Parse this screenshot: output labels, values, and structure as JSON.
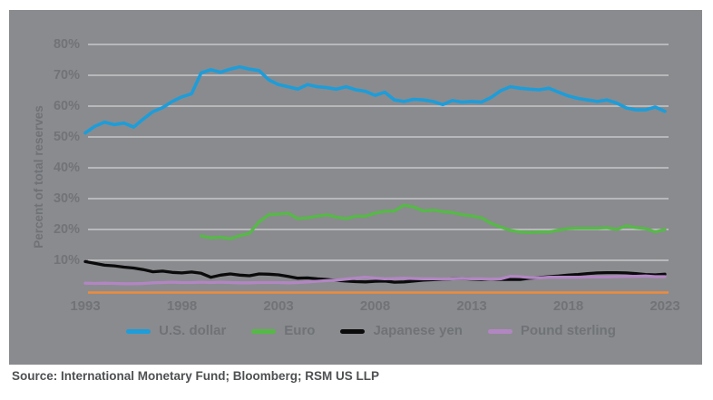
{
  "colors": {
    "panel_background": "#8a8b8e",
    "gridline": "#c6c7c9",
    "baseline_orange": "#ef8b3a",
    "tick_text": "#717377",
    "axis_title_text": "#6f7276",
    "legend_text": "#6f7276",
    "source_text": "#4e5052",
    "us_dollar": "#1d9dd9",
    "euro": "#56b947",
    "japanese_yen": "#0b0b0c",
    "pound_sterling": "#b286c3"
  },
  "source_line": "Source: International Monetary Fund; Bloomberg; RSM US LLP",
  "chart_data": {
    "type": "line",
    "title": "",
    "ylabel": "Percent of total reserves",
    "xlabel": "",
    "ylim": [
      0,
      85
    ],
    "xlim": [
      1992.6,
      2023.6
    ],
    "grid": "horizontal",
    "legend_position": "bottom",
    "baseline": {
      "value": 0,
      "color": "#ef8b3a"
    },
    "y_axis": {
      "tick_values": [
        10,
        20,
        30,
        40,
        50,
        60,
        70,
        80
      ],
      "tick_labels": [
        "10%",
        "20%",
        "30%",
        "40%",
        "50%",
        "60%",
        "70%",
        "80%"
      ]
    },
    "x_axis": {
      "tick_values": [
        1993,
        1998,
        2003,
        2008,
        2013,
        2018,
        2023
      ],
      "tick_labels": [
        "1993",
        "1998",
        "2003",
        "2008",
        "2013",
        "2018",
        "2023"
      ]
    },
    "series": [
      {
        "name": "U.S. dollar",
        "color": "#1d9dd9",
        "x_start": 1993,
        "x_step": 0.5,
        "values": [
          51.3,
          53.5,
          54.8,
          54.0,
          54.5,
          53.2,
          55.8,
          58.2,
          59.5,
          61.5,
          63.0,
          64.0,
          70.8,
          71.8,
          71.0,
          72.0,
          72.7,
          72.0,
          71.5,
          68.5,
          67.0,
          66.3,
          65.5,
          67.0,
          66.3,
          66.0,
          65.5,
          66.3,
          65.3,
          64.8,
          63.5,
          64.5,
          62.0,
          61.5,
          62.2,
          62.0,
          61.5,
          60.5,
          61.8,
          61.3,
          61.5,
          61.3,
          62.8,
          65.0,
          66.3,
          65.8,
          65.5,
          65.3,
          65.8,
          64.5,
          63.3,
          62.5,
          62.0,
          61.5,
          62.0,
          61.0,
          59.4,
          58.8,
          58.8,
          59.7,
          58.3
        ]
      },
      {
        "name": "Euro",
        "color": "#56b947",
        "x_start": 1999,
        "x_step": 0.5,
        "values": [
          17.9,
          17.3,
          17.5,
          17.0,
          18.0,
          18.8,
          22.5,
          24.8,
          25.0,
          25.3,
          23.5,
          23.8,
          24.3,
          24.8,
          24.0,
          23.5,
          24.3,
          24.3,
          25.3,
          25.9,
          26.0,
          27.9,
          27.3,
          26.0,
          26.3,
          25.8,
          25.5,
          24.8,
          24.4,
          23.8,
          22.0,
          20.8,
          19.7,
          19.2,
          19.0,
          19.2,
          19.2,
          19.8,
          20.3,
          20.4,
          20.4,
          20.4,
          20.6,
          20.0,
          21.2,
          20.6,
          20.3,
          19.2,
          20.0
        ]
      },
      {
        "name": "Japanese yen",
        "color": "#0b0b0c",
        "x_start": 1993,
        "x_step": 0.5,
        "values": [
          9.6,
          9.0,
          8.4,
          8.2,
          7.8,
          7.5,
          7.0,
          6.3,
          6.5,
          6.1,
          5.9,
          6.2,
          5.8,
          4.5,
          5.2,
          5.6,
          5.2,
          5.0,
          5.6,
          5.5,
          5.3,
          4.8,
          4.2,
          4.3,
          4.0,
          3.8,
          3.5,
          3.3,
          3.1,
          3.0,
          3.2,
          3.3,
          2.9,
          3.0,
          3.3,
          3.6,
          3.7,
          3.8,
          4.0,
          4.1,
          3.9,
          3.8,
          3.9,
          3.8,
          3.8,
          3.8,
          4.2,
          4.4,
          4.7,
          4.9,
          5.2,
          5.4,
          5.7,
          5.9,
          6.0,
          6.0,
          5.9,
          5.7,
          5.4,
          5.3,
          5.5
        ]
      },
      {
        "name": "Pound sterling",
        "color": "#b286c3",
        "x_start": 1993,
        "x_step": 0.5,
        "values": [
          2.6,
          2.5,
          2.6,
          2.5,
          2.4,
          2.4,
          2.5,
          2.7,
          2.8,
          2.9,
          2.8,
          2.8,
          2.9,
          2.8,
          2.9,
          2.8,
          2.7,
          2.7,
          2.8,
          2.8,
          2.8,
          2.7,
          2.8,
          3.0,
          3.2,
          3.4,
          3.6,
          3.9,
          4.2,
          4.5,
          4.2,
          4.0,
          4.1,
          4.2,
          4.1,
          4.0,
          4.0,
          3.9,
          4.0,
          4.1,
          4.0,
          4.0,
          3.9,
          4.0,
          4.8,
          4.7,
          4.4,
          4.3,
          4.5,
          4.5,
          4.5,
          4.5,
          4.6,
          4.6,
          4.6,
          4.7,
          4.8,
          4.8,
          4.9,
          4.7,
          4.7
        ]
      }
    ]
  }
}
